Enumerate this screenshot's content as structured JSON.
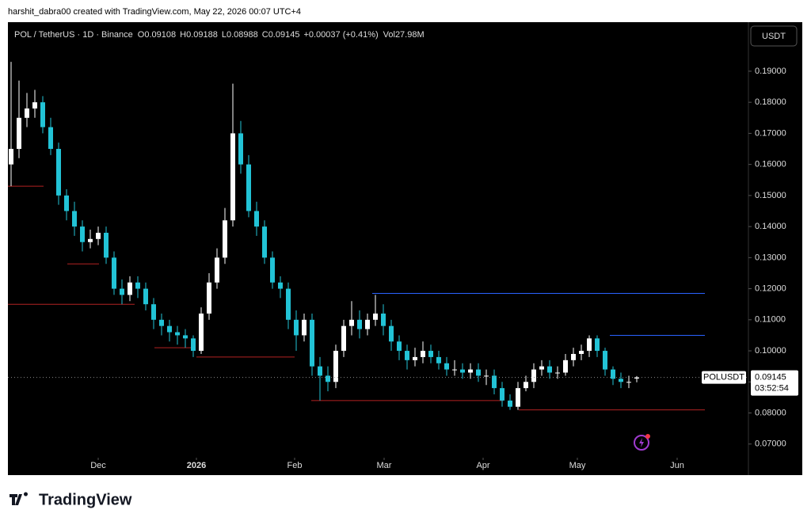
{
  "chart_data": {
    "type": "candlestick",
    "attribution": "harshit_dabra00 created with TradingView.com, May 22, 2026 00:07 UTC+4",
    "symbol_line": "POL / TetherUS · 1D · Binance",
    "ohlc_labels": [
      "O",
      "H",
      "L",
      "C"
    ],
    "change": "+0.00037 (+0.41%)",
    "volume_label": "Vol",
    "volume": "27.98M",
    "currency": "USDT",
    "ticker": "POLUSDT",
    "countdown": "03:52:54",
    "brand": "TradingView",
    "up_color": "#ffffff",
    "down_color": "#22c3d6",
    "categories": [
      null,
      null,
      null,
      null,
      null,
      null,
      null,
      null,
      null,
      null,
      null,
      null,
      null,
      null,
      null,
      null,
      null,
      null,
      null,
      null,
      null,
      null,
      null,
      null,
      null,
      null,
      null,
      null,
      null,
      null,
      null,
      null,
      null,
      null,
      null,
      null,
      null,
      null,
      null,
      null,
      null,
      null,
      null,
      null,
      null,
      null,
      null,
      null,
      null,
      null,
      null,
      null,
      null,
      null,
      null,
      null,
      null,
      null,
      null,
      null,
      null,
      null,
      null,
      null,
      null,
      null,
      null,
      null,
      null,
      null,
      null,
      null,
      null,
      null,
      null,
      null,
      null,
      null,
      null,
      null
    ],
    "open": [
      0.16,
      0.165,
      0.175,
      0.178,
      0.18,
      0.172,
      0.165,
      0.15,
      0.145,
      0.14,
      0.135,
      0.136,
      0.138,
      0.13,
      0.12,
      0.118,
      0.122,
      0.12,
      0.115,
      0.11,
      0.108,
      0.106,
      0.105,
      0.104,
      0.1,
      0.112,
      0.122,
      0.13,
      0.142,
      0.17,
      0.16,
      0.145,
      0.14,
      0.13,
      0.122,
      0.12,
      0.11,
      0.105,
      0.11,
      0.095,
      0.092,
      0.09,
      0.1,
      0.108,
      0.11,
      0.107,
      0.11,
      0.112,
      0.108,
      0.103,
      0.1,
      0.097,
      0.098,
      0.1,
      0.098,
      0.096,
      0.094,
      0.094,
      0.093,
      0.094,
      0.092,
      0.092,
      0.088,
      0.084,
      0.082,
      0.088,
      0.09,
      0.094,
      0.095,
      0.093,
      0.093,
      0.097,
      0.099,
      0.1,
      0.104,
      0.1,
      0.094,
      0.091,
      0.09,
      0.09108
    ],
    "high": [
      0.193,
      0.187,
      0.183,
      0.184,
      0.182,
      0.175,
      0.167,
      0.152,
      0.148,
      0.142,
      0.139,
      0.14,
      0.14,
      0.132,
      0.123,
      0.124,
      0.124,
      0.122,
      0.117,
      0.112,
      0.11,
      0.108,
      0.107,
      0.105,
      0.114,
      0.125,
      0.133,
      0.146,
      0.186,
      0.174,
      0.163,
      0.148,
      0.142,
      0.132,
      0.124,
      0.122,
      0.113,
      0.112,
      0.112,
      0.098,
      0.095,
      0.102,
      0.11,
      0.116,
      0.113,
      0.112,
      0.118,
      0.115,
      0.11,
      0.105,
      0.102,
      0.101,
      0.103,
      0.102,
      0.1,
      0.098,
      0.097,
      0.096,
      0.096,
      0.096,
      0.094,
      0.094,
      0.09,
      0.086,
      0.09,
      0.092,
      0.096,
      0.097,
      0.097,
      0.095,
      0.099,
      0.101,
      0.102,
      0.105,
      0.105,
      0.101,
      0.095,
      0.093,
      0.092,
      0.09188
    ],
    "low": [
      0.153,
      0.162,
      0.172,
      0.175,
      0.17,
      0.163,
      0.147,
      0.142,
      0.137,
      0.132,
      0.133,
      0.134,
      0.128,
      0.118,
      0.115,
      0.116,
      0.117,
      0.113,
      0.107,
      0.105,
      0.103,
      0.102,
      0.101,
      0.098,
      0.099,
      0.11,
      0.12,
      0.128,
      0.14,
      0.157,
      0.143,
      0.137,
      0.128,
      0.12,
      0.117,
      0.107,
      0.1,
      0.103,
      0.092,
      0.084,
      0.087,
      0.088,
      0.098,
      0.105,
      0.104,
      0.105,
      0.108,
      0.105,
      0.1,
      0.097,
      0.094,
      0.095,
      0.096,
      0.096,
      0.094,
      0.092,
      0.092,
      0.091,
      0.091,
      0.09,
      0.089,
      0.086,
      0.082,
      0.081,
      0.081,
      0.087,
      0.088,
      0.092,
      0.091,
      0.091,
      0.092,
      0.095,
      0.097,
      0.098,
      0.098,
      0.092,
      0.089,
      0.088,
      0.088,
      0.08988
    ],
    "close": [
      0.165,
      0.175,
      0.178,
      0.18,
      0.172,
      0.165,
      0.15,
      0.145,
      0.14,
      0.135,
      0.136,
      0.138,
      0.13,
      0.12,
      0.118,
      0.122,
      0.12,
      0.115,
      0.11,
      0.108,
      0.106,
      0.105,
      0.104,
      0.1,
      0.112,
      0.122,
      0.13,
      0.142,
      0.17,
      0.16,
      0.145,
      0.14,
      0.13,
      0.122,
      0.12,
      0.11,
      0.105,
      0.11,
      0.095,
      0.092,
      0.09,
      0.1,
      0.108,
      0.11,
      0.107,
      0.11,
      0.112,
      0.108,
      0.103,
      0.1,
      0.097,
      0.098,
      0.1,
      0.098,
      0.096,
      0.094,
      0.094,
      0.093,
      0.094,
      0.092,
      0.092,
      0.088,
      0.084,
      0.082,
      0.088,
      0.09,
      0.094,
      0.095,
      0.093,
      0.093,
      0.097,
      0.099,
      0.1,
      0.104,
      0.1,
      0.094,
      0.091,
      0.09,
      0.09,
      0.09145
    ],
    "levels": [
      {
        "value": 0.1185,
        "color": "#2962ff"
      },
      {
        "value": 0.105,
        "color": "#2962ff"
      },
      {
        "value": 0.153,
        "color": "#b22222"
      },
      {
        "value": 0.128,
        "color": "#b22222"
      },
      {
        "value": 0.115,
        "color": "#b22222"
      },
      {
        "value": 0.101,
        "color": "#b22222"
      },
      {
        "value": 0.098,
        "color": "#b22222"
      },
      {
        "value": 0.084,
        "color": "#b22222"
      },
      {
        "value": 0.081,
        "color": "#b22222"
      }
    ],
    "ylim": [
      0.06,
      0.204
    ],
    "yticks": [
      {
        "value": 0.07,
        "label": "0.07000"
      },
      {
        "value": 0.08,
        "label": "0.08000"
      },
      {
        "value": 0.09,
        "label": "0.09000"
      },
      {
        "value": 0.1,
        "label": "0.10000"
      },
      {
        "value": 0.11,
        "label": "0.11000"
      },
      {
        "value": 0.12,
        "label": "0.12000"
      },
      {
        "value": 0.13,
        "label": "0.13000"
      },
      {
        "value": 0.14,
        "label": "0.14000"
      },
      {
        "value": 0.15,
        "label": "0.15000"
      },
      {
        "value": 0.16,
        "label": "0.16000"
      },
      {
        "value": 0.17,
        "label": "0.17000"
      },
      {
        "value": 0.18,
        "label": "0.18000"
      },
      {
        "value": 0.19,
        "label": "0.19000"
      }
    ],
    "xticks": [
      {
        "value": 11,
        "label": "Dec"
      },
      {
        "value": 23.4,
        "label": "2026"
      },
      {
        "value": 35.8,
        "label": "Feb"
      },
      {
        "value": 47.1,
        "label": "Mar"
      },
      {
        "value": 59.6,
        "label": "Apr"
      },
      {
        "value": 71.5,
        "label": "May"
      },
      {
        "value": 84.1,
        "label": "Jun"
      }
    ]
  }
}
